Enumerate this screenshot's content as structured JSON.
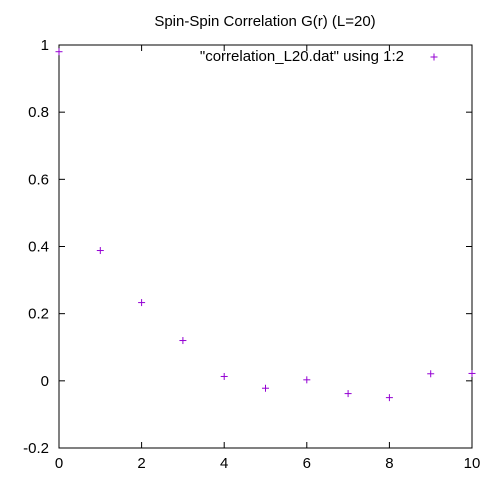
{
  "chart_data": {
    "type": "scatter",
    "title": "Spin-Spin Correlation G(r) (L=20)",
    "xlabel": "",
    "ylabel": "",
    "xlim": [
      0,
      10
    ],
    "ylim": [
      -0.2,
      1
    ],
    "x_ticks": [
      0,
      2,
      4,
      6,
      8,
      10
    ],
    "x_tick_labels": [
      "0",
      "2",
      "4",
      "6",
      "8",
      "10"
    ],
    "y_ticks": [
      -0.2,
      0,
      0.2,
      0.4,
      0.6,
      0.8,
      1
    ],
    "y_tick_labels": [
      "-0.2",
      "0",
      "0.2",
      "0.4",
      "0.6",
      "0.8",
      "1"
    ],
    "grid": false,
    "legend_position": "top-right",
    "series": [
      {
        "name": "\"correlation_L20.dat\" using 1:2",
        "color": "#9400d3",
        "marker": "plus",
        "x": [
          0,
          1,
          2,
          3,
          4,
          5,
          6,
          7,
          8,
          9,
          10
        ],
        "y": [
          0.98,
          0.388,
          0.233,
          0.12,
          0.013,
          -0.022,
          0.003,
          -0.038,
          -0.05,
          0.021,
          0.022
        ]
      }
    ]
  }
}
